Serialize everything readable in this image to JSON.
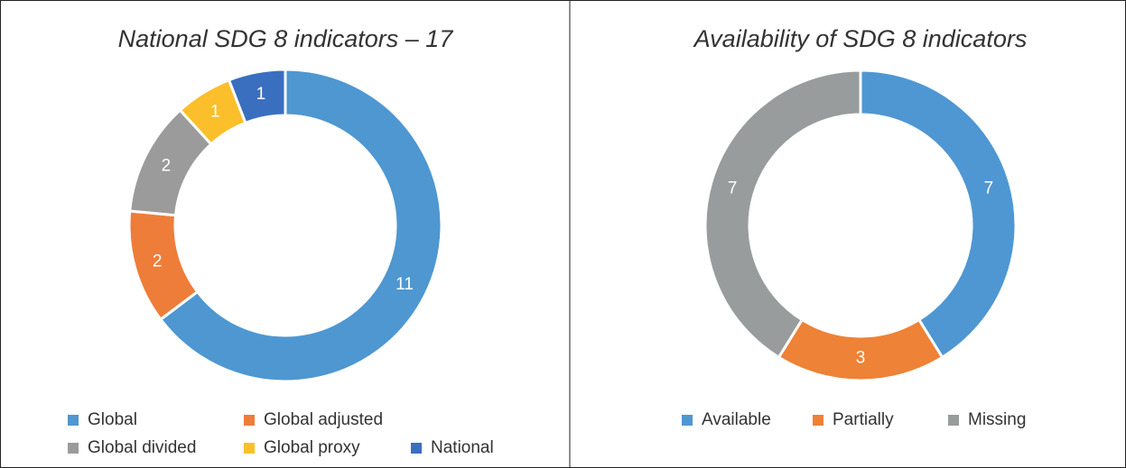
{
  "chart_data": [
    {
      "type": "donut",
      "title": "National SDG 8 indicators – 17",
      "categories": [
        "Global",
        "Global adjusted",
        "Global divided",
        "Global proxy",
        "National"
      ],
      "values": [
        11,
        2,
        2,
        1,
        1
      ],
      "colors": [
        "#4e97d1",
        "#ee7d3a",
        "#9b9b9b",
        "#fbbf2b",
        "#3a6fc0"
      ]
    },
    {
      "type": "donut",
      "title": "Availability of SDG 8 indicators",
      "categories": [
        "Available",
        "Partially",
        "Missing"
      ],
      "values": [
        7,
        3,
        7
      ],
      "colors": [
        "#4f97d2",
        "#ee8236",
        "#989c9c"
      ]
    }
  ]
}
